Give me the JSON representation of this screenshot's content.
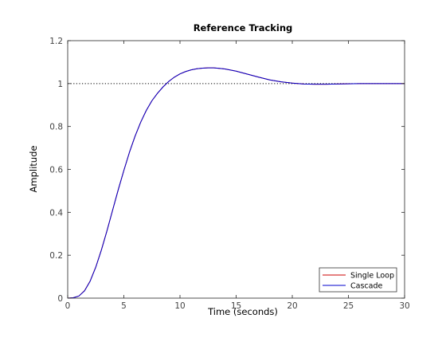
{
  "chart_data": {
    "type": "line",
    "title": "Reference Tracking",
    "xlabel": "Time (seconds)",
    "ylabel": "Amplitude",
    "xlim": [
      0,
      30
    ],
    "ylim": [
      0,
      1.2
    ],
    "xticks": [
      0,
      5,
      10,
      15,
      20,
      25,
      30
    ],
    "yticks": [
      0,
      0.2,
      0.4,
      0.6,
      0.8,
      1,
      1.2
    ],
    "xtick_labels": [
      "0",
      "5",
      "10",
      "15",
      "20",
      "25",
      "30"
    ],
    "ytick_labels": [
      "0",
      "0.2",
      "0.4",
      "0.6",
      "0.8",
      "1",
      "1.2"
    ],
    "grid": false,
    "legend_position": "bottom-right",
    "reference_line": {
      "y": 1,
      "style": "dotted",
      "color": "#000000"
    },
    "x": [
      0,
      0.5,
      1,
      1.5,
      2,
      2.5,
      3,
      3.5,
      4,
      4.5,
      5,
      5.5,
      6,
      6.5,
      7,
      7.5,
      8,
      8.5,
      9,
      9.5,
      10,
      10.5,
      11,
      11.5,
      12,
      12.5,
      13,
      13.5,
      14,
      15,
      16,
      17,
      18,
      19,
      20,
      21,
      22,
      23,
      24,
      25,
      26,
      27,
      28,
      29,
      30
    ],
    "series": [
      {
        "name": "Single Loop",
        "color": "#cc0000",
        "values": [
          0,
          0.002,
          0.01,
          0.035,
          0.08,
          0.145,
          0.225,
          0.315,
          0.41,
          0.505,
          0.595,
          0.68,
          0.755,
          0.82,
          0.875,
          0.92,
          0.955,
          0.985,
          1.01,
          1.03,
          1.045,
          1.056,
          1.064,
          1.069,
          1.072,
          1.073,
          1.073,
          1.071,
          1.068,
          1.058,
          1.044,
          1.03,
          1.017,
          1.008,
          1.002,
          0.998,
          0.997,
          0.997,
          0.998,
          0.999,
          1.0,
          1.0,
          1.0,
          1.0,
          1.0
        ]
      },
      {
        "name": "Cascade",
        "color": "#0000cc",
        "values": [
          0,
          0.002,
          0.01,
          0.034,
          0.079,
          0.144,
          0.224,
          0.314,
          0.41,
          0.505,
          0.595,
          0.68,
          0.755,
          0.82,
          0.875,
          0.92,
          0.955,
          0.985,
          1.01,
          1.03,
          1.045,
          1.056,
          1.064,
          1.069,
          1.072,
          1.073,
          1.073,
          1.071,
          1.068,
          1.058,
          1.044,
          1.03,
          1.017,
          1.008,
          1.002,
          0.998,
          0.997,
          0.997,
          0.998,
          0.999,
          1.0,
          1.0,
          1.0,
          1.0,
          1.0
        ]
      }
    ]
  }
}
